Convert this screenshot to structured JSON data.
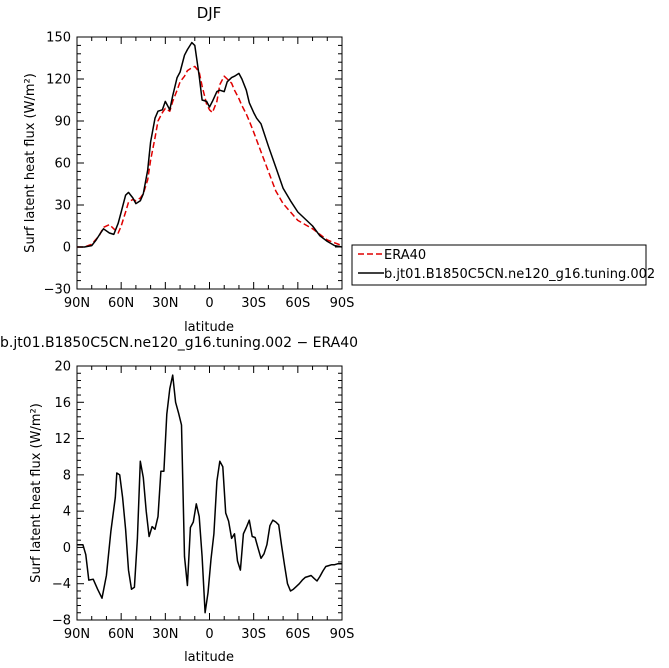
{
  "chart_data": [
    {
      "type": "line",
      "title": "DJF",
      "xlabel": "latitude",
      "ylabel": "Surf latent heat flux (W/m²)",
      "xlim": [
        90,
        -90
      ],
      "ylim": [
        -30,
        150
      ],
      "xticks": [
        90,
        60,
        30,
        0,
        -30,
        -60,
        -90
      ],
      "xtick_labels": [
        "90N",
        "60N",
        "30N",
        "0",
        "30S",
        "60S",
        "90S"
      ],
      "yticks": [
        -30,
        0,
        30,
        60,
        90,
        120,
        150
      ],
      "ytick_labels": [
        "−30",
        "0",
        "30",
        "60",
        "90",
        "120",
        "150"
      ],
      "legend_placement": "right, outside plot",
      "series": [
        {
          "name": "ERA40",
          "color": "#e00000",
          "dash": "dashed",
          "x": [
            90,
            85,
            80,
            75,
            72,
            68,
            65,
            62,
            60,
            57,
            55,
            52,
            50,
            47,
            45,
            42,
            40,
            37,
            35,
            32,
            30,
            27,
            25,
            22,
            20,
            17,
            15,
            12,
            10,
            7,
            5,
            2,
            0,
            -2,
            -5,
            -7,
            -10,
            -12,
            -15,
            -17,
            -20,
            -22,
            -25,
            -27,
            -30,
            -35,
            -40,
            -45,
            -50,
            -55,
            -60,
            -65,
            -70,
            -75,
            -80,
            -85,
            -90
          ],
          "y": [
            0,
            0,
            2,
            8,
            14,
            16,
            13,
            10,
            15,
            25,
            32,
            34,
            33,
            35,
            38,
            48,
            62,
            78,
            90,
            96,
            99,
            97,
            104,
            112,
            118,
            122,
            126,
            128,
            129,
            125,
            115,
            102,
            98,
            96,
            104,
            116,
            122,
            120,
            117,
            112,
            106,
            101,
            95,
            90,
            82,
            68,
            54,
            40,
            31,
            25,
            19,
            16,
            13,
            9,
            5,
            3,
            1
          ]
        },
        {
          "name": "b.jt01.B1850C5CN.ne120_g16.tuning.002",
          "color": "#000000",
          "dash": "solid",
          "x": [
            90,
            85,
            80,
            77,
            74,
            72,
            68,
            65,
            62,
            60,
            57,
            55,
            52,
            50,
            47,
            45,
            42,
            40,
            37,
            35,
            32,
            30,
            27,
            25,
            22,
            20,
            17,
            15,
            12,
            10,
            7,
            5,
            2,
            0,
            -2,
            -5,
            -7,
            -10,
            -12,
            -15,
            -17,
            -20,
            -22,
            -25,
            -27,
            -30,
            -32,
            -35,
            -40,
            -45,
            -50,
            -55,
            -60,
            -65,
            -70,
            -75,
            -80,
            -85,
            -90
          ],
          "y": [
            0,
            0,
            1,
            5,
            10,
            13,
            10,
            9,
            17,
            25,
            37,
            39,
            35,
            31,
            33,
            38,
            55,
            75,
            92,
            97,
            98,
            104,
            98,
            108,
            121,
            125,
            137,
            141,
            146,
            144,
            122,
            105,
            104,
            100,
            104,
            111,
            112,
            111,
            118,
            121,
            122,
            124,
            120,
            112,
            103,
            96,
            92,
            88,
            72,
            57,
            42,
            33,
            25,
            20,
            15,
            8,
            4,
            1,
            0
          ]
        }
      ]
    },
    {
      "type": "line",
      "title": "b.jt01.B1850C5CN.ne120_g16.tuning.002 − ERA40",
      "xlabel": "latitude",
      "ylabel": "Surf latent heat flux (W/m²)",
      "xlim": [
        90,
        -90
      ],
      "ylim": [
        -8,
        20
      ],
      "xticks": [
        90,
        60,
        30,
        0,
        -30,
        -60,
        -90
      ],
      "xtick_labels": [
        "90N",
        "60N",
        "30N",
        "0",
        "30S",
        "60S",
        "90S"
      ],
      "yticks": [
        -8,
        -4,
        0,
        4,
        8,
        12,
        16,
        20
      ],
      "ytick_labels": [
        "−8",
        "−4",
        "0",
        "4",
        "8",
        "12",
        "16",
        "20"
      ],
      "series": [
        {
          "color": "#000000",
          "dash": "solid",
          "x": [
            90,
            86,
            84,
            82,
            79,
            76,
            73,
            70,
            67,
            64,
            63,
            61,
            59,
            57,
            55,
            53,
            51,
            49,
            47,
            45,
            43,
            41,
            39,
            37,
            35,
            33,
            31,
            29,
            27,
            25,
            23,
            21,
            19,
            17,
            15,
            13,
            11,
            9,
            7,
            5,
            3,
            1,
            -1,
            -3,
            -5,
            -7,
            -9,
            -11,
            -13,
            -15,
            -17,
            -19,
            -21,
            -23,
            -25,
            -27,
            -29,
            -31,
            -33,
            -35,
            -37,
            -39,
            -41,
            -43,
            -45,
            -47,
            -49,
            -51,
            -53,
            -55,
            -57,
            -59,
            -61,
            -63,
            -65,
            -67,
            -69,
            -71,
            -73,
            -75,
            -77,
            -79,
            -81,
            -83,
            -85,
            -87,
            -89,
            -90
          ],
          "y": [
            0.3,
            0.3,
            -0.8,
            -3.6,
            -3.5,
            -4.6,
            -5.6,
            -3.1,
            1.8,
            5.5,
            8.2,
            8.0,
            5.5,
            2.0,
            -2.5,
            -4.6,
            -4.4,
            1.0,
            9.5,
            7.7,
            4.0,
            1.2,
            2.3,
            2.0,
            3.4,
            8.4,
            8.4,
            14.7,
            17.5,
            19.0,
            16.0,
            14.8,
            13.5,
            -1.0,
            -4.2,
            2.2,
            2.8,
            4.8,
            3.4,
            -1.0,
            -7.2,
            -5.0,
            -1.3,
            1.5,
            7.3,
            9.5,
            8.9,
            3.8,
            2.9,
            1.0,
            1.5,
            -1.5,
            -2.5,
            1.5,
            2.2,
            3.0,
            1.2,
            1.1,
            -0.1,
            -1.2,
            -0.7,
            0.3,
            2.4,
            3.0,
            2.8,
            2.5,
            0.2,
            -2.0,
            -4.0,
            -4.8,
            -4.6,
            -4.3,
            -4.0,
            -3.6,
            -3.3,
            -3.2,
            -3.1,
            -3.4,
            -3.7,
            -3.2,
            -2.6,
            -2.1,
            -2.0,
            -1.9,
            -1.9,
            -1.8,
            -1.8,
            -1.8
          ]
        }
      ]
    }
  ]
}
